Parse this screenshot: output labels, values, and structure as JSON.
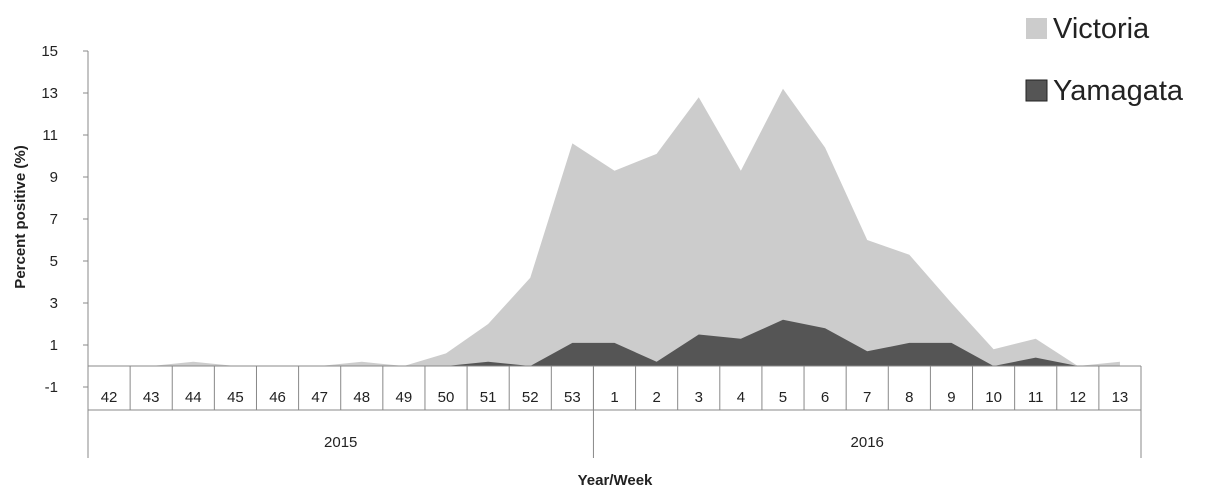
{
  "chart_data": {
    "type": "area",
    "title": "",
    "xlabel": "Year/Week",
    "ylabel": "Percent positive (%)",
    "ylim": [
      -1,
      15
    ],
    "yticks": [
      -1,
      1,
      3,
      5,
      7,
      9,
      11,
      13,
      15
    ],
    "grid": false,
    "legend_position": "top-right",
    "categories": [
      "42",
      "43",
      "44",
      "45",
      "46",
      "47",
      "48",
      "49",
      "50",
      "51",
      "52",
      "53",
      "1",
      "2",
      "3",
      "4",
      "5",
      "6",
      "7",
      "8",
      "9",
      "10",
      "11",
      "12",
      "13"
    ],
    "year_groups": [
      {
        "label": "2015",
        "weeks": 12
      },
      {
        "label": "2016",
        "weeks": 13
      }
    ],
    "series": [
      {
        "name": "Victoria",
        "color": "#cccccc",
        "values": [
          0,
          0,
          0.2,
          0,
          0,
          0,
          0.2,
          0,
          0.6,
          2.0,
          4.2,
          10.6,
          9.3,
          10.1,
          12.8,
          9.3,
          13.2,
          10.4,
          6.0,
          5.3,
          3.0,
          0.8,
          1.3,
          0,
          0.2
        ]
      },
      {
        "name": "Yamagata",
        "color": "#555555",
        "values": [
          0,
          0,
          0,
          0,
          0,
          0,
          0,
          0,
          0,
          0.2,
          0,
          1.1,
          1.1,
          0.2,
          1.5,
          1.3,
          2.2,
          1.8,
          0.7,
          1.1,
          1.1,
          0,
          0.4,
          0,
          0
        ]
      }
    ]
  }
}
